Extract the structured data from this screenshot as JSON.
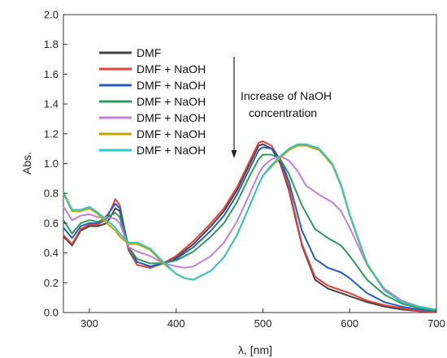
{
  "chart_data": {
    "type": "line",
    "title": "",
    "xlabel": "λ, [nm]",
    "ylabel": "Abs.",
    "xlim": [
      270,
      700
    ],
    "ylim": [
      0.0,
      2.0
    ],
    "xticks": [
      300,
      400,
      500,
      600,
      700
    ],
    "yticks": [
      0.0,
      0.2,
      0.4,
      0.6,
      0.8,
      1.0,
      1.2,
      1.4,
      1.6,
      1.8,
      2.0
    ],
    "grid": false,
    "legend_position": "top-left",
    "annotation": {
      "lines": [
        "Increase of NaOH",
        "concentration"
      ],
      "arrow": "down"
    },
    "series": [
      {
        "name": "DMF",
        "color": "#444444",
        "points": [
          [
            270,
            0.51
          ],
          [
            280,
            0.45
          ],
          [
            290,
            0.55
          ],
          [
            300,
            0.58
          ],
          [
            310,
            0.58
          ],
          [
            320,
            0.6
          ],
          [
            330,
            0.7
          ],
          [
            335,
            0.68
          ],
          [
            345,
            0.42
          ],
          [
            355,
            0.32
          ],
          [
            370,
            0.3
          ],
          [
            385,
            0.33
          ],
          [
            400,
            0.37
          ],
          [
            420,
            0.46
          ],
          [
            440,
            0.58
          ],
          [
            455,
            0.68
          ],
          [
            470,
            0.82
          ],
          [
            485,
            1.0
          ],
          [
            495,
            1.12
          ],
          [
            500,
            1.13
          ],
          [
            510,
            1.1
          ],
          [
            520,
            1.0
          ],
          [
            530,
            0.82
          ],
          [
            545,
            0.45
          ],
          [
            560,
            0.22
          ],
          [
            575,
            0.16
          ],
          [
            590,
            0.13
          ],
          [
            600,
            0.11
          ],
          [
            620,
            0.07
          ],
          [
            640,
            0.04
          ],
          [
            660,
            0.02
          ],
          [
            680,
            0.01
          ],
          [
            700,
            0.005
          ]
        ]
      },
      {
        "name": "DMF + NaOH",
        "color": "#e8413c",
        "points": [
          [
            270,
            0.52
          ],
          [
            280,
            0.46
          ],
          [
            290,
            0.56
          ],
          [
            300,
            0.59
          ],
          [
            310,
            0.59
          ],
          [
            320,
            0.63
          ],
          [
            330,
            0.76
          ],
          [
            335,
            0.72
          ],
          [
            345,
            0.43
          ],
          [
            355,
            0.32
          ],
          [
            370,
            0.3
          ],
          [
            385,
            0.33
          ],
          [
            400,
            0.38
          ],
          [
            420,
            0.48
          ],
          [
            440,
            0.6
          ],
          [
            455,
            0.7
          ],
          [
            470,
            0.84
          ],
          [
            485,
            1.02
          ],
          [
            495,
            1.14
          ],
          [
            500,
            1.15
          ],
          [
            510,
            1.12
          ],
          [
            520,
            1.02
          ],
          [
            530,
            0.84
          ],
          [
            545,
            0.46
          ],
          [
            560,
            0.24
          ],
          [
            575,
            0.18
          ],
          [
            590,
            0.15
          ],
          [
            600,
            0.13
          ],
          [
            620,
            0.08
          ],
          [
            640,
            0.05
          ],
          [
            660,
            0.03
          ],
          [
            680,
            0.01
          ],
          [
            700,
            0.005
          ]
        ]
      },
      {
        "name": "DMF + NaOH",
        "color": "#1f5fc4",
        "points": [
          [
            270,
            0.57
          ],
          [
            280,
            0.5
          ],
          [
            290,
            0.58
          ],
          [
            300,
            0.6
          ],
          [
            310,
            0.6
          ],
          [
            320,
            0.65
          ],
          [
            330,
            0.73
          ],
          [
            335,
            0.7
          ],
          [
            345,
            0.44
          ],
          [
            355,
            0.34
          ],
          [
            370,
            0.31
          ],
          [
            385,
            0.33
          ],
          [
            400,
            0.36
          ],
          [
            420,
            0.44
          ],
          [
            440,
            0.55
          ],
          [
            455,
            0.65
          ],
          [
            470,
            0.79
          ],
          [
            485,
            0.97
          ],
          [
            495,
            1.09
          ],
          [
            500,
            1.11
          ],
          [
            510,
            1.1
          ],
          [
            520,
            1.03
          ],
          [
            530,
            0.88
          ],
          [
            545,
            0.55
          ],
          [
            560,
            0.36
          ],
          [
            575,
            0.3
          ],
          [
            590,
            0.27
          ],
          [
            600,
            0.23
          ],
          [
            620,
            0.13
          ],
          [
            640,
            0.07
          ],
          [
            660,
            0.04
          ],
          [
            680,
            0.02
          ],
          [
            700,
            0.01
          ]
        ]
      },
      {
        "name": "DMF + NaOH",
        "color": "#2e9a5c",
        "points": [
          [
            270,
            0.62
          ],
          [
            280,
            0.53
          ],
          [
            290,
            0.6
          ],
          [
            300,
            0.62
          ],
          [
            310,
            0.61
          ],
          [
            320,
            0.64
          ],
          [
            330,
            0.67
          ],
          [
            335,
            0.64
          ],
          [
            345,
            0.44
          ],
          [
            355,
            0.36
          ],
          [
            370,
            0.33
          ],
          [
            385,
            0.33
          ],
          [
            400,
            0.35
          ],
          [
            420,
            0.41
          ],
          [
            440,
            0.51
          ],
          [
            455,
            0.6
          ],
          [
            470,
            0.74
          ],
          [
            485,
            0.92
          ],
          [
            495,
            1.03
          ],
          [
            500,
            1.06
          ],
          [
            510,
            1.06
          ],
          [
            520,
            1.03
          ],
          [
            530,
            0.93
          ],
          [
            545,
            0.72
          ],
          [
            560,
            0.56
          ],
          [
            575,
            0.5
          ],
          [
            590,
            0.45
          ],
          [
            600,
            0.38
          ],
          [
            620,
            0.22
          ],
          [
            640,
            0.12
          ],
          [
            660,
            0.06
          ],
          [
            680,
            0.03
          ],
          [
            700,
            0.01
          ]
        ]
      },
      {
        "name": "DMF + NaOH",
        "color": "#c67de0",
        "points": [
          [
            270,
            0.71
          ],
          [
            280,
            0.62
          ],
          [
            290,
            0.65
          ],
          [
            300,
            0.66
          ],
          [
            310,
            0.64
          ],
          [
            320,
            0.64
          ],
          [
            330,
            0.63
          ],
          [
            335,
            0.6
          ],
          [
            345,
            0.44
          ],
          [
            355,
            0.41
          ],
          [
            370,
            0.38
          ],
          [
            385,
            0.33
          ],
          [
            400,
            0.31
          ],
          [
            410,
            0.3
          ],
          [
            420,
            0.31
          ],
          [
            440,
            0.38
          ],
          [
            455,
            0.47
          ],
          [
            470,
            0.61
          ],
          [
            485,
            0.8
          ],
          [
            495,
            0.93
          ],
          [
            500,
            0.98
          ],
          [
            510,
            1.03
          ],
          [
            520,
            1.05
          ],
          [
            530,
            1.02
          ],
          [
            540,
            0.95
          ],
          [
            550,
            0.85
          ],
          [
            565,
            0.79
          ],
          [
            580,
            0.74
          ],
          [
            590,
            0.68
          ],
          [
            600,
            0.57
          ],
          [
            620,
            0.32
          ],
          [
            640,
            0.16
          ],
          [
            660,
            0.08
          ],
          [
            680,
            0.04
          ],
          [
            700,
            0.02
          ]
        ]
      },
      {
        "name": "DMF + NaOH",
        "color": "#c9a100",
        "points": [
          [
            270,
            0.8
          ],
          [
            280,
            0.68
          ],
          [
            290,
            0.68
          ],
          [
            300,
            0.7
          ],
          [
            310,
            0.66
          ],
          [
            320,
            0.6
          ],
          [
            330,
            0.55
          ],
          [
            335,
            0.51
          ],
          [
            345,
            0.46
          ],
          [
            355,
            0.46
          ],
          [
            370,
            0.42
          ],
          [
            385,
            0.33
          ],
          [
            400,
            0.26
          ],
          [
            410,
            0.23
          ],
          [
            420,
            0.22
          ],
          [
            440,
            0.28
          ],
          [
            455,
            0.37
          ],
          [
            470,
            0.52
          ],
          [
            485,
            0.72
          ],
          [
            495,
            0.86
          ],
          [
            500,
            0.92
          ],
          [
            510,
            0.98
          ],
          [
            520,
            1.04
          ],
          [
            530,
            1.09
          ],
          [
            540,
            1.12
          ],
          [
            550,
            1.12
          ],
          [
            565,
            1.09
          ],
          [
            580,
            0.99
          ],
          [
            590,
            0.85
          ],
          [
            600,
            0.65
          ],
          [
            620,
            0.32
          ],
          [
            640,
            0.15
          ],
          [
            660,
            0.07
          ],
          [
            680,
            0.04
          ],
          [
            700,
            0.02
          ]
        ]
      },
      {
        "name": "DMF + NaOH",
        "color": "#2ec7c9",
        "points": [
          [
            270,
            0.81
          ],
          [
            280,
            0.69
          ],
          [
            290,
            0.69
          ],
          [
            300,
            0.71
          ],
          [
            310,
            0.67
          ],
          [
            320,
            0.62
          ],
          [
            330,
            0.57
          ],
          [
            335,
            0.53
          ],
          [
            345,
            0.47
          ],
          [
            355,
            0.47
          ],
          [
            370,
            0.43
          ],
          [
            385,
            0.34
          ],
          [
            400,
            0.26
          ],
          [
            410,
            0.23
          ],
          [
            420,
            0.22
          ],
          [
            440,
            0.28
          ],
          [
            455,
            0.37
          ],
          [
            470,
            0.52
          ],
          [
            485,
            0.72
          ],
          [
            495,
            0.86
          ],
          [
            500,
            0.92
          ],
          [
            510,
            0.99
          ],
          [
            520,
            1.05
          ],
          [
            530,
            1.1
          ],
          [
            540,
            1.13
          ],
          [
            550,
            1.13
          ],
          [
            565,
            1.1
          ],
          [
            580,
            1.0
          ],
          [
            590,
            0.86
          ],
          [
            600,
            0.66
          ],
          [
            620,
            0.33
          ],
          [
            640,
            0.15
          ],
          [
            660,
            0.07
          ],
          [
            680,
            0.04
          ],
          [
            700,
            0.02
          ]
        ]
      }
    ]
  }
}
